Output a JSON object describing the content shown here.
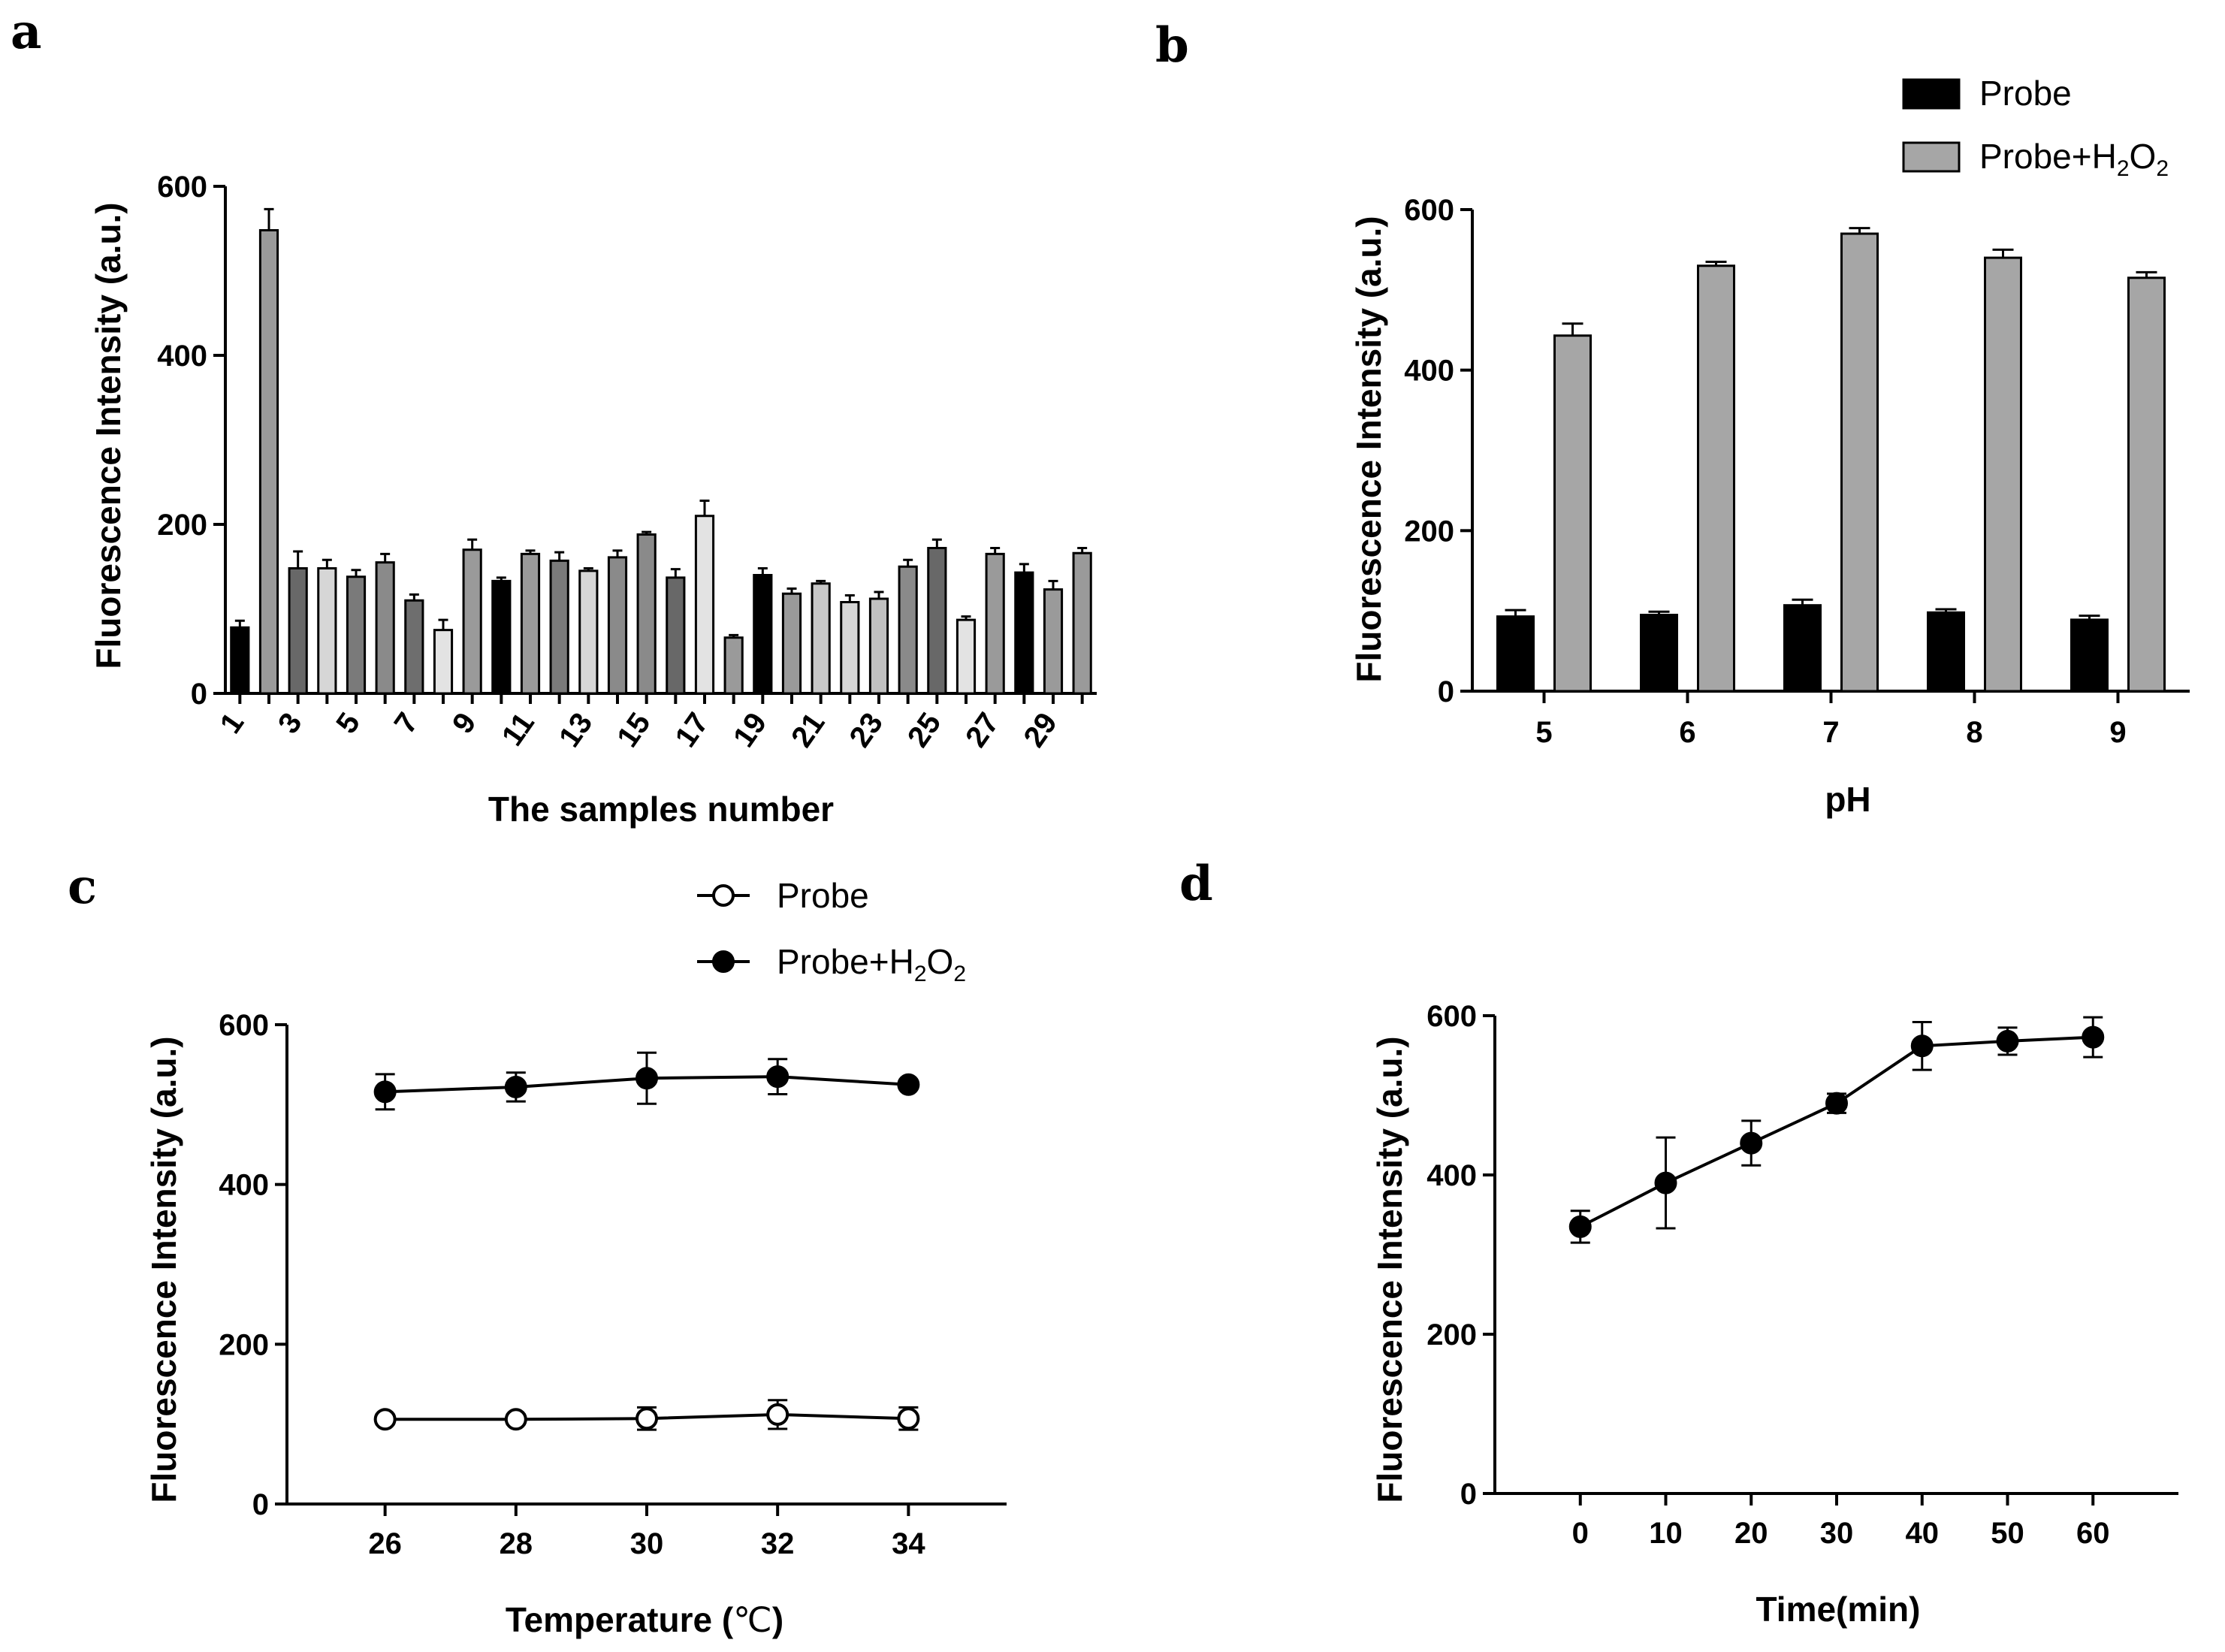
{
  "panels": {
    "a": "a",
    "b": "b",
    "c": "c",
    "d": "d"
  },
  "chart_data": [
    {
      "id": "a",
      "type": "bar",
      "xlabel": "The samples number",
      "ylabel": "Fluorescence Intensity (a.u.)",
      "ylim": [
        0,
        600
      ],
      "yticks": [
        0,
        200,
        400,
        600
      ],
      "xtick_labels": [
        "1",
        "3",
        "5",
        "7",
        "9",
        "11",
        "13",
        "15",
        "17",
        "19",
        "21",
        "23",
        "25",
        "27",
        "29"
      ],
      "categories": [
        "1",
        "2",
        "3",
        "4",
        "5",
        "6",
        "7",
        "8",
        "9",
        "10",
        "11",
        "12",
        "13",
        "14",
        "15",
        "16",
        "17",
        "18",
        "19",
        "20",
        "21",
        "22",
        "23",
        "24",
        "25",
        "26",
        "27",
        "28",
        "29",
        "30"
      ],
      "values": [
        78,
        548,
        148,
        148,
        138,
        155,
        110,
        75,
        170,
        133,
        165,
        157,
        145,
        161,
        188,
        137,
        210,
        66,
        140,
        118,
        130,
        108,
        112,
        150,
        172,
        87,
        165,
        143,
        123,
        166
      ],
      "errors": [
        8,
        25,
        20,
        10,
        8,
        10,
        7,
        12,
        12,
        4,
        4,
        10,
        3,
        8,
        3,
        10,
        18,
        3,
        8,
        6,
        3,
        8,
        8,
        8,
        10,
        4,
        7,
        10,
        10,
        6
      ],
      "colors": [
        "#000000",
        "#9a9a9a",
        "#686868",
        "#d6d6d6",
        "#7a7a7a",
        "#8a8a8a",
        "#6e6e6e",
        "#e3e3e3",
        "#9a9a9a",
        "#000000",
        "#9a9a9a",
        "#7a7a7a",
        "#d6d6d6",
        "#8a8a8a",
        "#8a8a8a",
        "#686868",
        "#e3e3e3",
        "#9a9a9a",
        "#000000",
        "#9a9a9a",
        "#c8c8c8",
        "#d6d6d6",
        "#c0c0c0",
        "#8a8a8a",
        "#686868",
        "#e3e3e3",
        "#9a9a9a",
        "#000000",
        "#9a9a9a",
        "#9a9a9a"
      ]
    },
    {
      "id": "b",
      "type": "bar",
      "xlabel": "pH",
      "ylabel": "Fluorescence Intensity (a.u.)",
      "ylim": [
        0,
        600
      ],
      "yticks": [
        0,
        200,
        400,
        600
      ],
      "categories": [
        "5",
        "6",
        "7",
        "8",
        "9"
      ],
      "series": [
        {
          "name": "Probe",
          "color": "#000000",
          "values": [
            93,
            95,
            107,
            98,
            89
          ],
          "errors": [
            8,
            4,
            7,
            4,
            5
          ]
        },
        {
          "name": "Probe+H2O2",
          "name_parts": [
            "Probe+H",
            "2",
            "O",
            "2"
          ],
          "color": "#a6a6a6",
          "values": [
            443,
            530,
            570,
            540,
            515
          ],
          "errors": [
            15,
            5,
            7,
            10,
            7
          ]
        }
      ],
      "legend": "top-right"
    },
    {
      "id": "c",
      "type": "line",
      "xlabel_parts": [
        "Temperature (",
        "℃",
        ")"
      ],
      "ylabel": "Fluorescence Intensity (a.u.)",
      "ylim": [
        0,
        600
      ],
      "yticks": [
        0,
        200,
        400,
        600
      ],
      "xlim": [
        24.5,
        35.5
      ],
      "x": [
        26,
        28,
        30,
        32,
        34
      ],
      "series": [
        {
          "name": "Probe",
          "marker": "open-circle",
          "values": [
            106,
            106,
            107,
            112,
            107
          ],
          "errors": [
            6,
            6,
            14,
            18,
            14
          ]
        },
        {
          "name": "Probe+H2O2",
          "name_parts": [
            "Probe+H",
            "2",
            "O",
            "2"
          ],
          "marker": "filled-circle",
          "values": [
            516,
            522,
            533,
            535,
            525
          ],
          "errors": [
            22,
            18,
            32,
            22,
            5
          ]
        }
      ],
      "legend": "top-right"
    },
    {
      "id": "d",
      "type": "line",
      "xlabel": "Time(min)",
      "ylabel": "Fluorescence Intensity (a.u.)",
      "ylim": [
        0,
        600
      ],
      "yticks": [
        0,
        200,
        400,
        600
      ],
      "xlim": [
        -10,
        70
      ],
      "x": [
        0,
        10,
        20,
        30,
        40,
        50,
        60
      ],
      "series": [
        {
          "name": "",
          "marker": "filled-circle",
          "values": [
            335,
            390,
            440,
            490,
            562,
            568,
            573
          ],
          "errors": [
            20,
            57,
            28,
            12,
            30,
            17,
            25
          ]
        }
      ]
    }
  ]
}
